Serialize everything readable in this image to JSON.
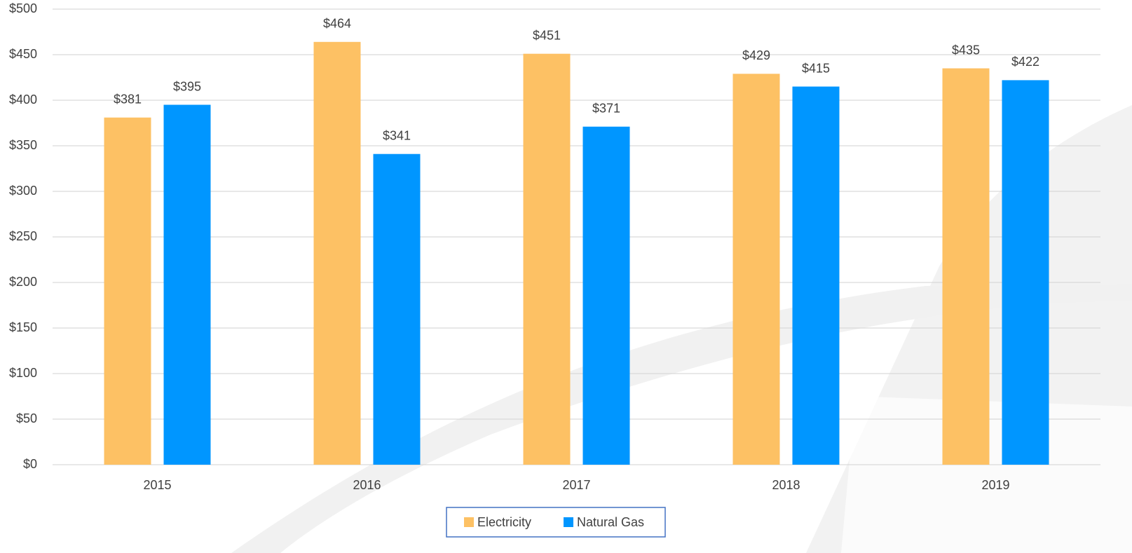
{
  "chart_data": {
    "type": "bar",
    "categories": [
      "2015",
      "2016",
      "2017",
      "2018",
      "2019"
    ],
    "series": [
      {
        "name": "Electricity",
        "color": "#fdc164",
        "values": [
          381,
          464,
          451,
          429,
          435
        ],
        "value_labels": [
          "$381",
          "$464",
          "$451",
          "$429",
          "$435"
        ]
      },
      {
        "name": "Natural Gas",
        "color": "#0096ff",
        "values": [
          395,
          341,
          371,
          415,
          422
        ],
        "value_labels": [
          "$395",
          "$341",
          "$371",
          "$415",
          "$422"
        ]
      }
    ],
    "ylim": [
      0,
      500
    ],
    "yticks": [
      {
        "value": 0,
        "label": "$0"
      },
      {
        "value": 50,
        "label": "$50"
      },
      {
        "value": 100,
        "label": "$100"
      },
      {
        "value": 150,
        "label": "$150"
      },
      {
        "value": 200,
        "label": "$200"
      },
      {
        "value": 250,
        "label": "$250"
      },
      {
        "value": 300,
        "label": "$300"
      },
      {
        "value": 350,
        "label": "$350"
      },
      {
        "value": 400,
        "label": "$400"
      },
      {
        "value": 450,
        "label": "$450"
      },
      {
        "value": 500,
        "label": "$500"
      }
    ],
    "grid": true,
    "legend": "bottom"
  }
}
